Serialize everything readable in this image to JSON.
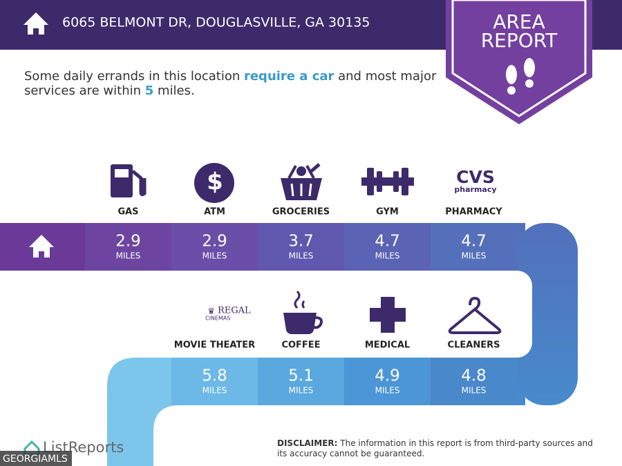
{
  "header": {
    "address": "6065 BELMONT DR, DOUGLASVILLE, GA 30135"
  },
  "badge": {
    "line1": "AREA",
    "line2": "REPORT"
  },
  "intro": {
    "before": "Some daily errands in this location ",
    "highlight": "require a car",
    "middle": " and most major services are within ",
    "miles": 5,
    "after": " miles."
  },
  "unit": "MILES",
  "rows": [
    [
      {
        "name": "GAS",
        "distance": 2.9
      },
      {
        "name": "ATM",
        "distance": 2.9
      },
      {
        "name": "GROCERIES",
        "distance": 3.7
      },
      {
        "name": "GYM",
        "distance": 4.7
      },
      {
        "name": "PHARMACY",
        "distance": 4.7
      }
    ],
    [
      {
        "name": "MOVIE THEATER",
        "distance": 5.8
      },
      {
        "name": "COFFEE",
        "distance": 5.1
      },
      {
        "name": "MEDICAL",
        "distance": 4.9
      },
      {
        "name": "CLEANERS",
        "distance": 4.8
      }
    ]
  ],
  "logos": {
    "atm": "$",
    "cvs": "CVS",
    "cvs_sub": "pharmacy",
    "regal": "REGAL",
    "regal_sub": "CINEMAS",
    "listreports": "ListReports",
    "mls": "GEORGIAMLS"
  },
  "disclaimer": {
    "label": "DISCLAIMER:",
    "text": " The information in this report is from third-party sources and its accuracy cannot be guaranteed."
  }
}
